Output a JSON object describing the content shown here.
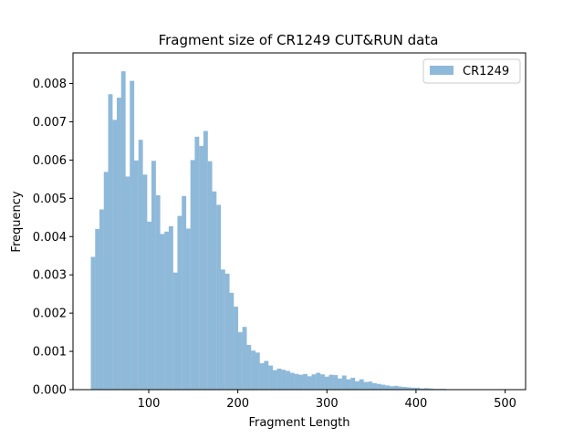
{
  "chart_data": {
    "type": "bar",
    "title": "Fragment size of CR1249 CUT&RUN data",
    "xlabel": "Fragment Length",
    "ylabel": "Frequency",
    "xlim": [
      15,
      523
    ],
    "ylim": [
      0,
      0.0088
    ],
    "xticks": [
      100,
      200,
      300,
      400,
      500
    ],
    "yticks": [
      0.0,
      0.001,
      0.002,
      0.003,
      0.004,
      0.005,
      0.006,
      0.007,
      0.008
    ],
    "ytick_labels": [
      "0.000",
      "0.001",
      "0.002",
      "0.003",
      "0.004",
      "0.005",
      "0.006",
      "0.007",
      "0.008"
    ],
    "grid": false,
    "legend_position": "top-right",
    "bin_start": 35,
    "bin_width": 4.86,
    "series": [
      {
        "name": "CR1249",
        "color": "#8fb9d9",
        "values": [
          0.00347,
          0.0042,
          0.00471,
          0.00569,
          0.00772,
          0.00705,
          0.00763,
          0.00832,
          0.00557,
          0.00807,
          0.00599,
          0.00653,
          0.00562,
          0.00439,
          0.00598,
          0.00508,
          0.00407,
          0.00413,
          0.00427,
          0.00306,
          0.00454,
          0.00506,
          0.00421,
          0.006,
          0.00661,
          0.00637,
          0.00676,
          0.00597,
          0.00518,
          0.00483,
          0.00314,
          0.00303,
          0.00253,
          0.00217,
          0.0015,
          0.00164,
          0.00117,
          0.00102,
          0.00097,
          0.00069,
          0.00075,
          0.00063,
          0.00051,
          0.00055,
          0.00052,
          0.00049,
          0.00044,
          0.00041,
          0.00039,
          0.00041,
          0.00035,
          0.0004,
          0.00044,
          0.0004,
          0.00034,
          0.00039,
          0.00038,
          0.00029,
          0.00037,
          0.00027,
          0.00031,
          0.00022,
          0.00027,
          0.0002,
          0.00021,
          0.00017,
          0.00015,
          0.00013,
          0.00011,
          9e-05,
          0.0001,
          8e-05,
          7e-05,
          6e-05,
          5e-05,
          5e-05,
          3e-05,
          4e-05,
          3e-05,
          2e-05,
          2e-05,
          2e-05,
          1e-05,
          1e-05,
          1e-05,
          1e-05,
          1e-05,
          0.0,
          0.0,
          0.0,
          0.0,
          0.0,
          0.0,
          0.0,
          0.0,
          0.0
        ]
      }
    ]
  }
}
